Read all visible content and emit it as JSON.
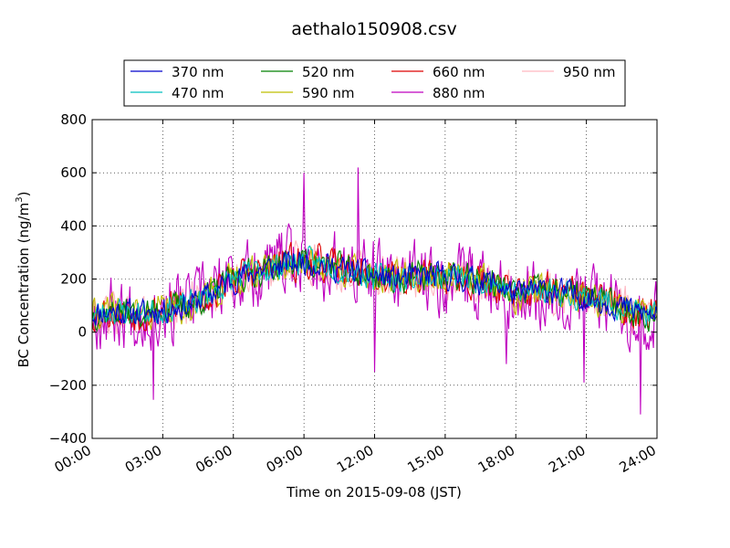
{
  "chart_data": {
    "type": "line",
    "title": "aethalo150908.csv",
    "xlabel": "Time on 2015-09-08 (JST)",
    "ylabel": "BC Concentration (ng/m",
    "ylabel_sup": "3",
    "ylabel_end": ")",
    "xlim": [
      0,
      24
    ],
    "ylim": [
      -400,
      800
    ],
    "x_ticks": [
      0,
      3,
      6,
      9,
      12,
      15,
      18,
      21,
      24
    ],
    "x_tick_labels": [
      "00:00",
      "03:00",
      "06:00",
      "09:00",
      "12:00",
      "15:00",
      "18:00",
      "21:00",
      "24:00"
    ],
    "y_ticks": [
      -400,
      -200,
      0,
      200,
      400,
      600,
      800
    ],
    "y_tick_labels": [
      "−400",
      "−200",
      "0",
      "200",
      "400",
      "600",
      "800"
    ],
    "grid": true,
    "legend_position": "top-center",
    "baseline_hourly": {
      "x": [
        0,
        1,
        2,
        3,
        4,
        5,
        6,
        7,
        8,
        9,
        10,
        11,
        12,
        13,
        14,
        15,
        16,
        17,
        18,
        19,
        20,
        21,
        22,
        23,
        24
      ],
      "y": [
        70,
        80,
        70,
        85,
        100,
        140,
        200,
        230,
        250,
        270,
        250,
        230,
        210,
        200,
        210,
        210,
        200,
        190,
        140,
        160,
        150,
        130,
        110,
        80,
        60
      ]
    },
    "series": [
      {
        "name": "370 nm",
        "color": "#0000cc",
        "amp": 45,
        "seed": 11
      },
      {
        "name": "470 nm",
        "color": "#00bfbf",
        "amp": 45,
        "seed": 23
      },
      {
        "name": "520 nm",
        "color": "#008000",
        "amp": 50,
        "seed": 37
      },
      {
        "name": "590 nm",
        "color": "#bfbf00",
        "amp": 55,
        "seed": 41
      },
      {
        "name": "660 nm",
        "color": "#dd0000",
        "amp": 60,
        "seed": 53
      },
      {
        "name": "880 nm",
        "color": "#bf00bf",
        "amp": 120,
        "seed": 67
      },
      {
        "name": "950 nm",
        "color": "#ffb6c1",
        "amp": 75,
        "seed": 79
      }
    ],
    "spikes_880": [
      {
        "x": 2.6,
        "y": -255
      },
      {
        "x": 9.0,
        "y": 600
      },
      {
        "x": 11.3,
        "y": 620
      },
      {
        "x": 12.0,
        "y": -150
      },
      {
        "x": 23.3,
        "y": -310
      },
      {
        "x": 20.9,
        "y": -190
      },
      {
        "x": 17.6,
        "y": -120
      }
    ]
  }
}
